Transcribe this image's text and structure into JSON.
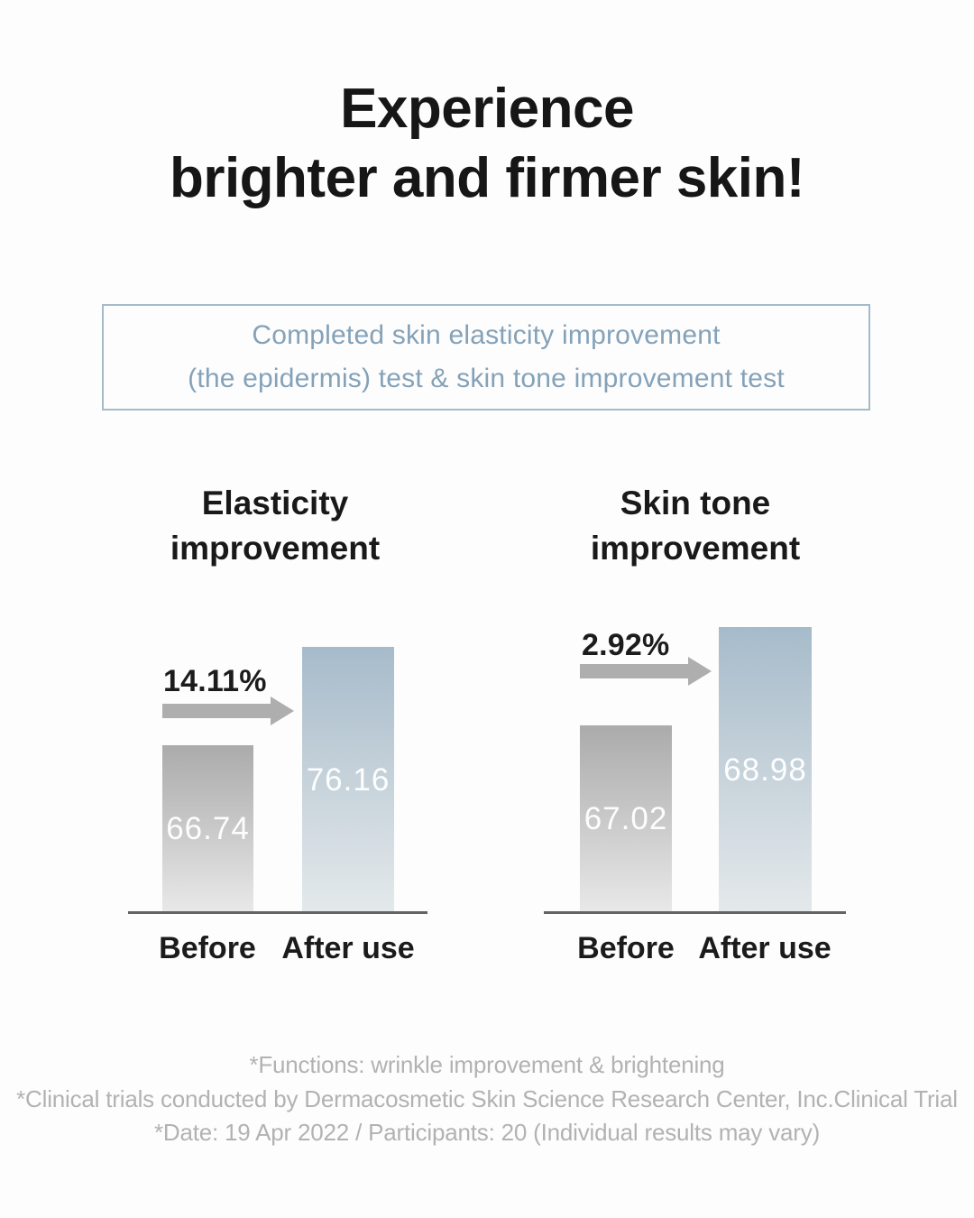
{
  "page": {
    "background_color": "#FDFDFD",
    "title": {
      "line1": "Experience",
      "line2": "brighter and firmer skin!"
    },
    "subtitle_box": {
      "line1": "Completed skin elasticity improvement",
      "line2": "(the epidermis) test & skin tone improvement test",
      "border_color": "#A6BAC8",
      "text_color": "#84A2B9"
    },
    "footnotes": [
      "*Functions: wrinkle improvement & brightening",
      "*Clinical trials conducted by Dermacosmetic Skin Science Research Center, Inc.Clinical Trial",
      "*Date: 19 Apr 2022 / Participants: 20 (Individual results may vary)"
    ]
  },
  "chart_data": [
    {
      "type": "bar",
      "title": "Elasticity improvement",
      "categories": [
        "Before",
        "After use"
      ],
      "values": [
        66.74,
        76.16
      ],
      "improvement_label": "14.11%",
      "value_label_color": "#FFFFFF",
      "before_bar_gradient": [
        "#ABABAB",
        "#E9E9E9"
      ],
      "after_bar_gradient": [
        "#A6BBCA",
        "#E4E9EB"
      ],
      "arrow_color": "#AEAEAE",
      "grid": false,
      "legend_position": "none",
      "note": "bar heights stylized, not to scale"
    },
    {
      "type": "bar",
      "title": "Skin tone improvement",
      "categories": [
        "Before",
        "After use"
      ],
      "values": [
        67.02,
        68.98
      ],
      "improvement_label": "2.92%",
      "value_label_color": "#FFFFFF",
      "before_bar_gradient": [
        "#ABABAB",
        "#E9E9E9"
      ],
      "after_bar_gradient": [
        "#A6BBCA",
        "#E4E9EB"
      ],
      "arrow_color": "#AEAEAE",
      "grid": false,
      "legend_position": "none",
      "note": "bar heights stylized, not to scale"
    }
  ]
}
